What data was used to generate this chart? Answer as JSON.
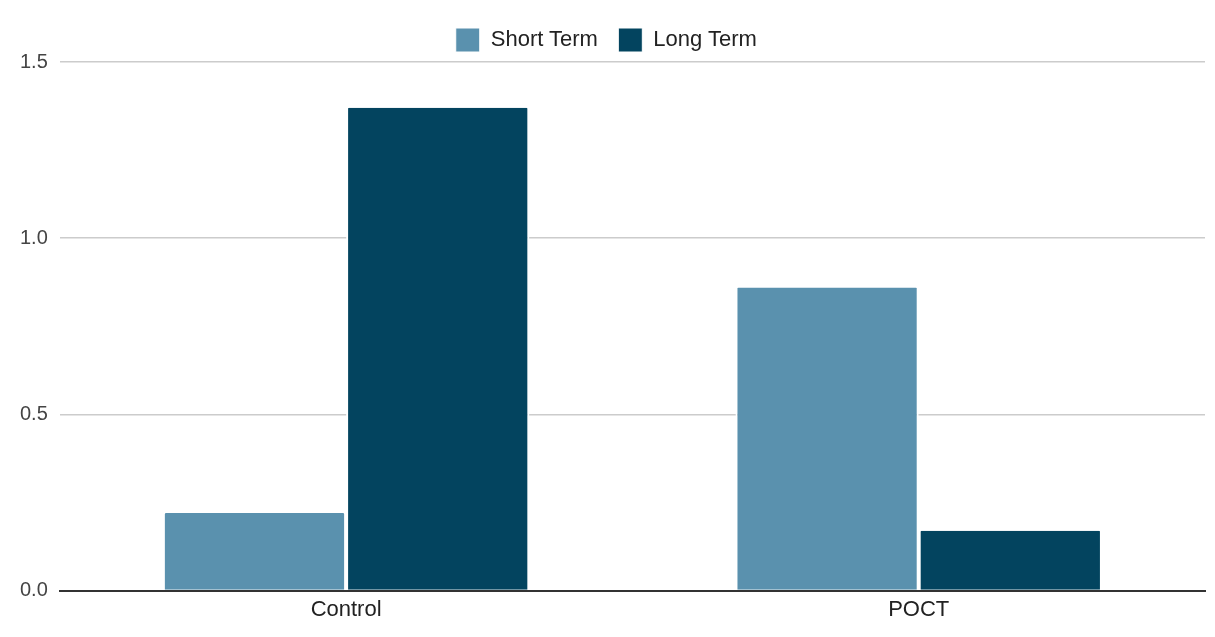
{
  "chart_data": {
    "type": "bar",
    "categories": [
      "Control",
      "POCT"
    ],
    "series": [
      {
        "name": "Short Term",
        "color": "#5a91ae",
        "values": [
          0.22,
          0.86
        ]
      },
      {
        "name": "Long Term",
        "color": "#03445f",
        "values": [
          1.37,
          0.17
        ]
      }
    ],
    "ylim": [
      0,
      1.5
    ],
    "yticks": [
      {
        "value": 0,
        "label": "0.0"
      },
      {
        "value": 0.5,
        "label": "0.5"
      },
      {
        "value": 1,
        "label": "1.0"
      },
      {
        "value": 1.5,
        "label": "1.5"
      }
    ],
    "grid": "y",
    "legend": "top"
  }
}
